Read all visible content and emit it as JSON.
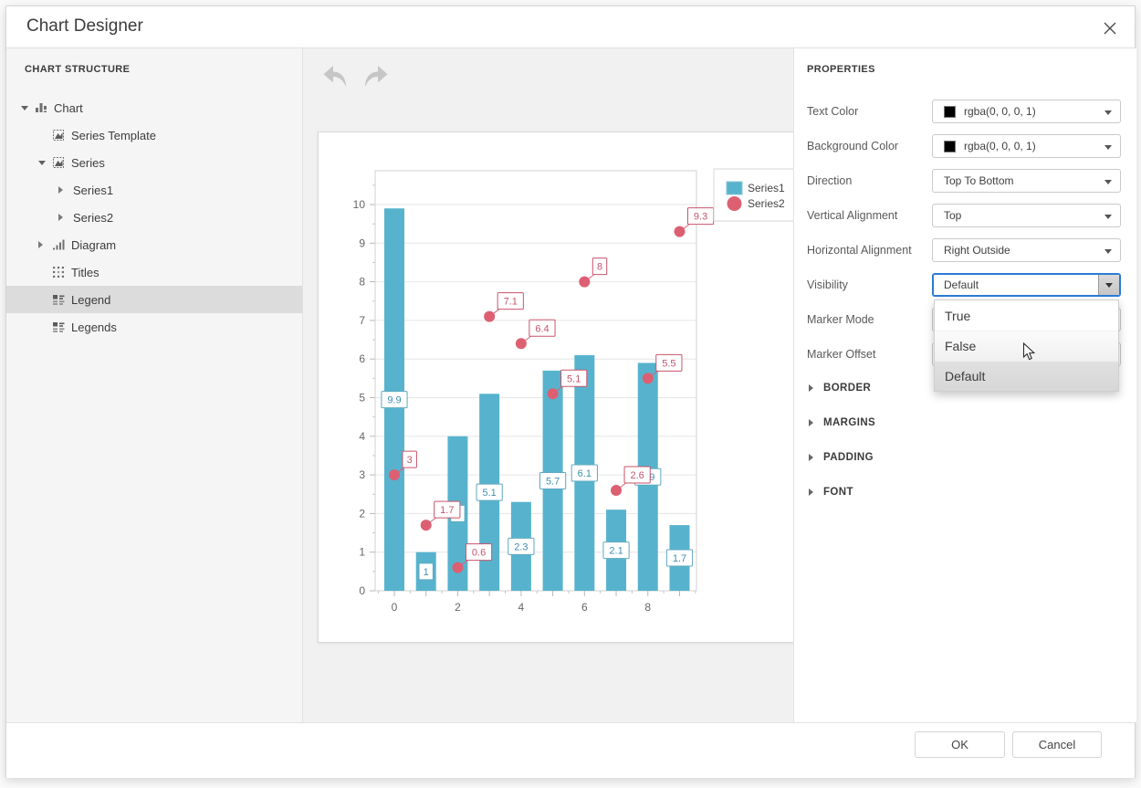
{
  "window": {
    "title": "Chart Designer"
  },
  "sidebar": {
    "header": "CHART STRUCTURE",
    "items": [
      {
        "label": "Chart",
        "level": 0,
        "state": "expanded",
        "icon": "chart-icon",
        "selected": false
      },
      {
        "label": "Series Template",
        "level": 1,
        "state": "none",
        "icon": "series-icon",
        "selected": false
      },
      {
        "label": "Series",
        "level": 1,
        "state": "expanded",
        "icon": "series-icon",
        "selected": false
      },
      {
        "label": "Series1",
        "level": 2,
        "state": "collapsed",
        "icon": "none",
        "selected": false
      },
      {
        "label": "Series2",
        "level": 2,
        "state": "collapsed",
        "icon": "none",
        "selected": false
      },
      {
        "label": "Diagram",
        "level": 1,
        "state": "collapsed",
        "icon": "diagram-icon",
        "selected": false
      },
      {
        "label": "Titles",
        "level": 1,
        "state": "none",
        "icon": "titles-icon",
        "selected": false
      },
      {
        "label": "Legend",
        "level": 1,
        "state": "none",
        "icon": "legend-icon",
        "selected": true
      },
      {
        "label": "Legends",
        "level": 1,
        "state": "none",
        "icon": "legend-icon",
        "selected": false
      }
    ]
  },
  "properties": {
    "header": "PROPERTIES",
    "rows": [
      {
        "label": "Text Color",
        "type": "color",
        "value": "rgba(0, 0, 0, 1)",
        "swatch": "#000000"
      },
      {
        "label": "Background Color",
        "type": "color",
        "value": "rgba(0, 0, 0, 1)",
        "swatch": "#000000"
      },
      {
        "label": "Direction",
        "type": "select",
        "value": "Top To Bottom"
      },
      {
        "label": "Vertical Alignment",
        "type": "select",
        "value": "Top"
      },
      {
        "label": "Horizontal Alignment",
        "type": "select",
        "value": "Right Outside"
      },
      {
        "label": "Visibility",
        "type": "select-open",
        "value": "Default"
      },
      {
        "label": "Marker Mode",
        "type": "select",
        "value": ""
      },
      {
        "label": "Marker Offset",
        "type": "select",
        "value": ""
      }
    ],
    "dropdown": {
      "options": [
        "True",
        "False",
        "Default"
      ],
      "selected": "Default",
      "hovered": "False"
    },
    "sections": [
      "BORDER",
      "MARGINS",
      "PADDING",
      "FONT"
    ]
  },
  "footer": {
    "ok_label": "OK",
    "cancel_label": "Cancel"
  },
  "colors": {
    "bar": "#57b3cd",
    "bar_label": "#3d8fae",
    "point": "#dd5f72",
    "point_label": "#c4556d",
    "focus_blue": "#2b7bd4",
    "selected_row": "#dcdcdc"
  },
  "chart_data": {
    "type": "bar+scatter",
    "x": [
      0,
      1,
      2,
      3,
      4,
      5,
      6,
      7,
      8,
      9
    ],
    "series": [
      {
        "name": "Series1",
        "type": "bar",
        "color": "#57b3cd",
        "values": [
          9.9,
          1,
          4,
          5.1,
          2.3,
          5.7,
          6.1,
          2.1,
          5.9,
          1.7
        ]
      },
      {
        "name": "Series2",
        "type": "point",
        "color": "#dd5f72",
        "values": [
          3,
          1.7,
          0.6,
          7.1,
          6.4,
          5.1,
          8,
          2.6,
          5.5,
          9.3
        ]
      }
    ],
    "ylim": [
      0,
      10.9
    ],
    "yticks": [
      0,
      1,
      2,
      3,
      4,
      5,
      6,
      7,
      8,
      9,
      10
    ],
    "xticks_labeled": [
      0,
      2,
      4,
      6,
      8
    ],
    "grid": "horizontal",
    "legend_position": "top-right",
    "data_labels": "value in framed box"
  }
}
